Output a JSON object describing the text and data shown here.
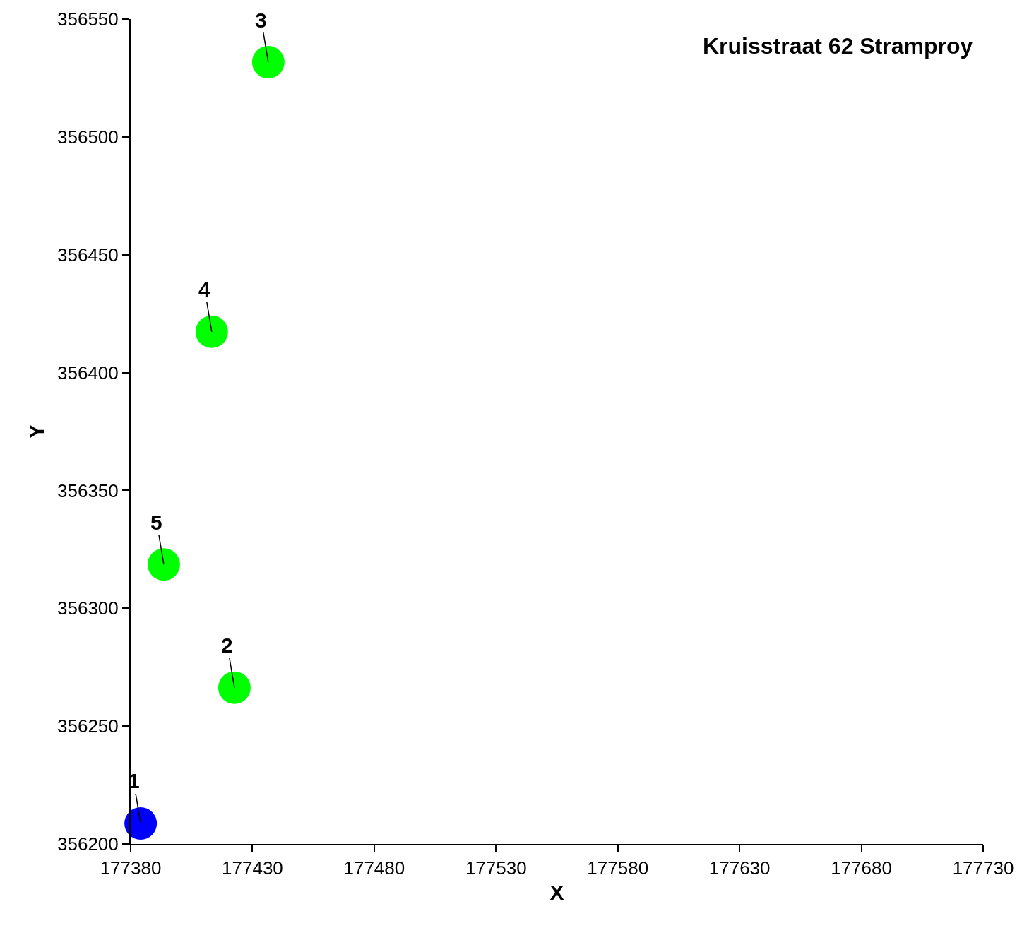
{
  "chart_data": {
    "type": "scatter",
    "title": "Kruisstraat 62 Stramproy",
    "xlabel": "X",
    "ylabel": "Y",
    "x": [
      177384.1,
      177422.6,
      177436.5,
      177413.3,
      177393.6
    ],
    "values": [
      356208.7,
      356266.3,
      356531.7,
      356417.3,
      356318.6
    ],
    "colors": [
      "#0000ff",
      "#00ff00",
      "#00ff00",
      "#00ff00",
      "#00ff00"
    ],
    "marker": "circle",
    "xlim": [
      177380,
      177730
    ],
    "xticks": [
      177380,
      177430,
      177480,
      177530,
      177580,
      177630,
      177680,
      177730
    ],
    "ylim": [
      356200,
      356550
    ],
    "yticks": [
      356200,
      356250,
      356300,
      356350,
      356400,
      356450,
      356500,
      356550
    ],
    "annotations": [
      {
        "text": "1",
        "x": 177384.1,
        "y": 356208.7
      },
      {
        "text": "2",
        "x": 177422.6,
        "y": 356266.3
      },
      {
        "text": "3",
        "x": 177436.5,
        "y": 356531.7
      },
      {
        "text": "4",
        "x": 177413.3,
        "y": 356417.3
      },
      {
        "text": "5",
        "x": 177393.6,
        "y": 356318.6
      }
    ]
  }
}
